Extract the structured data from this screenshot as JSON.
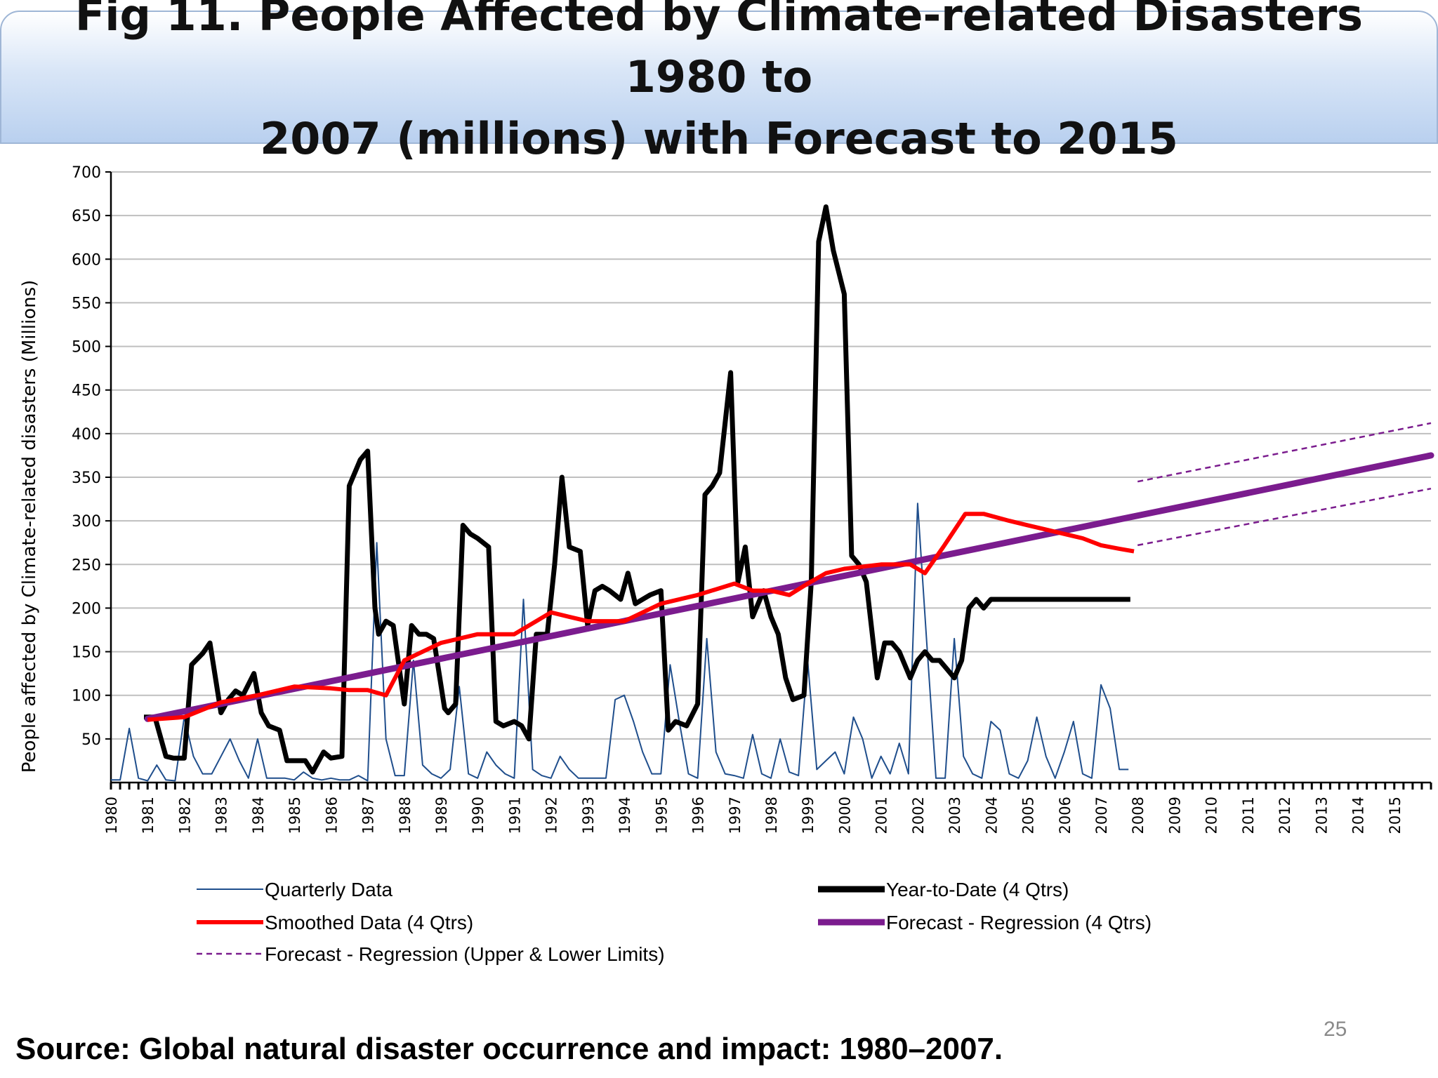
{
  "slide": {
    "title": "Fig 11. People Affected by Climate-related Disasters 1980 to\n2007 (millions) with Forecast to 2015",
    "source": "Source: Global natural disaster occurrence and impact: 1980–2007.",
    "page_number": "25"
  },
  "chart_data": {
    "type": "line",
    "title": "Fig 11. People Affected by Climate-related Disasters 1980 to 2007 (millions) with Forecast to 2015",
    "ylabel": "People affected by Climate-related disasters (Millions)",
    "xlabel": "",
    "xlim": [
      1980,
      2016
    ],
    "ylim": [
      0,
      700
    ],
    "yticks": [
      50,
      100,
      150,
      200,
      250,
      300,
      350,
      400,
      450,
      500,
      550,
      600,
      650,
      700
    ],
    "xticks": [
      "1980",
      "1981",
      "1982",
      "1983",
      "1984",
      "1985",
      "1986",
      "1987",
      "1988",
      "1989",
      "1990",
      "1991",
      "1992",
      "1993",
      "1994",
      "1995",
      "1996",
      "1997",
      "1998",
      "1999",
      "2000",
      "2001",
      "2002",
      "2003",
      "2004",
      "2005",
      "2006",
      "2007",
      "2008",
      "2009",
      "2010",
      "2011",
      "2012",
      "2013",
      "2014",
      "2015"
    ],
    "grid": true,
    "legend_position": "bottom",
    "colors": {
      "quarterly": "#1f4e8c",
      "ytd": "#000000",
      "smoothed": "#ff0000",
      "forecast": "#7b1c8e",
      "limits": "#7b1c8e",
      "grid": "#bfbfbf"
    },
    "series": [
      {
        "name": "Quarterly Data",
        "key": "quarterly",
        "x": [
          1980.0,
          1980.25,
          1980.5,
          1980.75,
          1981.0,
          1981.25,
          1981.5,
          1981.75,
          1982.0,
          1982.25,
          1982.5,
          1982.75,
          1983.0,
          1983.25,
          1983.5,
          1983.75,
          1984.0,
          1984.25,
          1984.5,
          1984.75,
          1985.0,
          1985.25,
          1985.5,
          1985.75,
          1986.0,
          1986.25,
          1986.5,
          1986.75,
          1987.0,
          1987.25,
          1987.5,
          1987.75,
          1988.0,
          1988.25,
          1988.5,
          1988.75,
          1989.0,
          1989.25,
          1989.5,
          1989.75,
          1990.0,
          1990.25,
          1990.5,
          1990.75,
          1991.0,
          1991.25,
          1991.5,
          1991.75,
          1992.0,
          1992.25,
          1992.5,
          1992.75,
          1993.0,
          1993.25,
          1993.5,
          1993.75,
          1994.0,
          1994.25,
          1994.5,
          1994.75,
          1995.0,
          1995.25,
          1995.5,
          1995.75,
          1996.0,
          1996.25,
          1996.5,
          1996.75,
          1997.0,
          1997.25,
          1997.5,
          1997.75,
          1998.0,
          1998.25,
          1998.5,
          1998.75,
          1999.0,
          1999.25,
          1999.5,
          1999.75,
          2000.0,
          2000.25,
          2000.5,
          2000.75,
          2001.0,
          2001.25,
          2001.5,
          2001.75,
          2002.0,
          2002.25,
          2002.5,
          2002.75,
          2003.0,
          2003.25,
          2003.5,
          2003.75,
          2004.0,
          2004.25,
          2004.5,
          2004.75,
          2005.0,
          2005.25,
          2005.5,
          2005.75,
          2006.0,
          2006.25,
          2006.5,
          2006.75,
          2007.0,
          2007.25,
          2007.5,
          2007.75
        ],
        "values": [
          3,
          3,
          62,
          5,
          2,
          20,
          3,
          2,
          75,
          30,
          10,
          10,
          30,
          50,
          25,
          5,
          50,
          5,
          5,
          5,
          3,
          12,
          5,
          3,
          5,
          3,
          3,
          8,
          2,
          275,
          50,
          8,
          8,
          140,
          20,
          10,
          5,
          15,
          110,
          10,
          5,
          35,
          20,
          10,
          5,
          210,
          15,
          8,
          5,
          30,
          15,
          5,
          5,
          5,
          5,
          95,
          100,
          70,
          35,
          10,
          10,
          135,
          70,
          10,
          5,
          165,
          35,
          10,
          8,
          5,
          55,
          10,
          5,
          50,
          12,
          8,
          140,
          15,
          25,
          35,
          10,
          75,
          50,
          5,
          30,
          10,
          45,
          10,
          320,
          160,
          5,
          5,
          165,
          30,
          10,
          5,
          70,
          60,
          10,
          5,
          25,
          75,
          30,
          5,
          35,
          70,
          10,
          5,
          112,
          85,
          15,
          15
        ]
      },
      {
        "name": "Year-to-Date (4 Qtrs)",
        "key": "ytd",
        "x": [
          1980.9,
          1981.2,
          1981.5,
          1981.7,
          1982.0,
          1982.2,
          1982.5,
          1982.7,
          1983.0,
          1983.2,
          1983.4,
          1983.6,
          1983.9,
          1984.1,
          1984.3,
          1984.6,
          1984.8,
          1985.0,
          1985.3,
          1985.5,
          1985.8,
          1986.0,
          1986.3,
          1986.5,
          1986.8,
          1987.0,
          1987.2,
          1987.3,
          1987.5,
          1987.7,
          1988.0,
          1988.2,
          1988.4,
          1988.6,
          1988.8,
          1989.1,
          1989.2,
          1989.4,
          1989.6,
          1989.8,
          1990.0,
          1990.3,
          1990.5,
          1990.7,
          1991.0,
          1991.2,
          1991.4,
          1991.6,
          1991.9,
          1992.1,
          1992.3,
          1992.5,
          1992.8,
          1993.0,
          1993.2,
          1993.4,
          1993.6,
          1993.9,
          1994.1,
          1994.3,
          1994.5,
          1994.7,
          1995.0,
          1995.2,
          1995.4,
          1995.7,
          1996.0,
          1996.2,
          1996.4,
          1996.6,
          1996.9,
          1997.1,
          1997.3,
          1997.5,
          1997.8,
          1998.0,
          1998.2,
          1998.4,
          1998.6,
          1998.9,
          1999.1,
          1999.3,
          1999.5,
          1999.7,
          2000.0,
          2000.2,
          2000.4,
          2000.6,
          2000.9,
          2001.1,
          2001.3,
          2001.5,
          2001.8,
          2002.0,
          2002.2,
          2002.4,
          2002.6,
          2002.8,
          2003.0,
          2003.2,
          2003.4,
          2003.6,
          2003.8,
          2004.0,
          2004.2,
          2004.4,
          2004.6,
          2004.8,
          2005.0,
          2005.2,
          2005.4,
          2005.6,
          2005.8,
          2006.0,
          2006.2,
          2006.4,
          2006.6,
          2006.8,
          2007.0,
          2007.2,
          2007.4,
          2007.6,
          2007.8
        ],
        "values": [
          75,
          75,
          30,
          28,
          28,
          135,
          148,
          160,
          80,
          95,
          105,
          100,
          125,
          80,
          65,
          60,
          25,
          25,
          25,
          12,
          35,
          28,
          30,
          340,
          370,
          380,
          200,
          170,
          185,
          180,
          90,
          180,
          170,
          170,
          165,
          85,
          80,
          90,
          295,
          285,
          280,
          270,
          70,
          65,
          70,
          65,
          50,
          170,
          170,
          250,
          350,
          270,
          265,
          180,
          220,
          225,
          220,
          210,
          240,
          205,
          210,
          215,
          220,
          60,
          70,
          65,
          90,
          330,
          340,
          355,
          470,
          230,
          270,
          190,
          220,
          190,
          170,
          120,
          95,
          100,
          230,
          620,
          660,
          610,
          560,
          260,
          250,
          230,
          120,
          160,
          160,
          150,
          120,
          140,
          150,
          140,
          140,
          130,
          120,
          140,
          200,
          210,
          200,
          210,
          210,
          210,
          210,
          210,
          210,
          210,
          210,
          210,
          210,
          210,
          210,
          210,
          210,
          210,
          210,
          210,
          210,
          210,
          210
        ],
        "values_note": "shown"
      },
      {
        "name": "Smoothed Data (4 Qtrs)",
        "key": "smoothed",
        "x": [
          1981.0,
          1982.0,
          1983.0,
          1984.0,
          1985.0,
          1986.0,
          1986.5,
          1987.0,
          1987.5,
          1988.0,
          1989.0,
          1990.0,
          1991.0,
          1992.0,
          1992.5,
          1993.0,
          1994.0,
          1995.0,
          1996.0,
          1997.0,
          1997.5,
          1998.0,
          1998.5,
          1999.0,
          1999.5,
          2000.0,
          2001.0,
          2001.8,
          2002.2,
          2002.7,
          2003.3,
          2003.8,
          2004.5,
          2005.0,
          2005.5,
          2006.0,
          2006.5,
          2007.0,
          2007.5,
          2007.9
        ],
        "values": [
          72,
          75,
          92,
          100,
          110,
          108,
          106,
          106,
          100,
          140,
          160,
          170,
          170,
          195,
          190,
          185,
          185,
          205,
          215,
          228,
          220,
          220,
          215,
          228,
          240,
          245,
          250,
          250,
          240,
          270,
          308,
          308,
          300,
          295,
          290,
          285,
          280,
          272,
          268,
          265
        ]
      },
      {
        "name": "Forecast - Regression (4 Qtrs)",
        "key": "forecast",
        "x": [
          1981.0,
          2016.0
        ],
        "values": [
          73,
          375
        ]
      },
      {
        "name": "Forecast - Regression (Upper & Lower Limits)",
        "key": "limits",
        "x": [
          2008.0,
          2016.0
        ],
        "upper": [
          345,
          412
        ],
        "lower": [
          272,
          337
        ]
      }
    ]
  }
}
